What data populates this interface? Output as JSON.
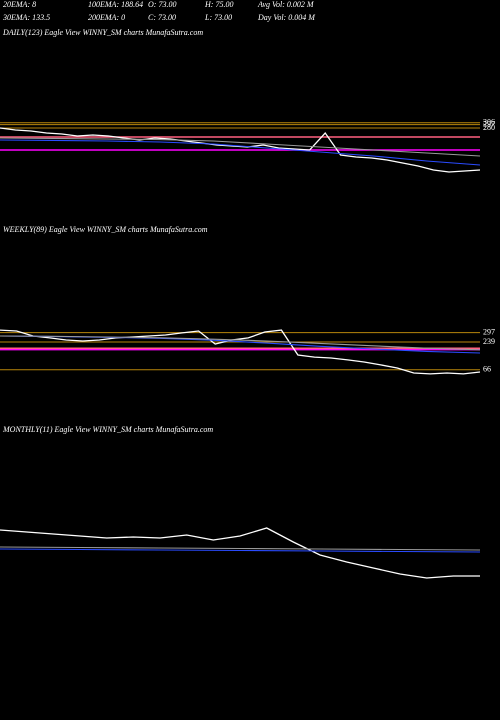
{
  "header": {
    "row1": [
      "20EMA: 8",
      "100EMA: 188.64",
      "O: 73.00",
      "H: 75.00",
      "Avg Vol: 0.002  M"
    ],
    "row2": [
      "30EMA: 133.5",
      "200EMA: 0",
      "C: 73.00",
      "L: 73.00",
      "Day Vol: 0.004  M"
    ]
  },
  "chart_data": [
    {
      "type": "line",
      "title": "DAILY(123) Eagle   View  WINNY_SM charts MunafaSutra.com",
      "ylim": [
        -80,
        420
      ],
      "series": [
        {
          "color": "#ffffff",
          "values": [
            280,
            270,
            265,
            255,
            250,
            240,
            245,
            240,
            230,
            220,
            230,
            225,
            215,
            205,
            195,
            190,
            185,
            195,
            180,
            175,
            170,
            255,
            145,
            135,
            130,
            120,
            105,
            90,
            70,
            60,
            65,
            70
          ]
        },
        {
          "color": "#2a4bff",
          "values": [
            220,
            218,
            215,
            210,
            200,
            180,
            160,
            140,
            115,
            95
          ]
        },
        {
          "color": "#9a9a9a",
          "values": [
            230,
            228,
            225,
            222,
            215,
            200,
            185,
            170,
            155,
            140
          ]
        }
      ],
      "levels": [
        {
          "value": 306,
          "color": "#b8860b"
        },
        {
          "value": 297,
          "color": "#b8860b"
        },
        {
          "value": 280,
          "color": "#b8860b"
        }
      ],
      "other_levels": [
        {
          "value": 170,
          "color": "#ff00ff"
        },
        {
          "value": 235,
          "color": "#ff6080"
        }
      ]
    },
    {
      "type": "line",
      "title": "WEEKLY(89) Eagle   View  WINNY_SM charts MunafaSutra.com",
      "ylim": [
        -60,
        500
      ],
      "series": [
        {
          "color": "#ffffff",
          "values": [
            313,
            307,
            276,
            264,
            251,
            245,
            251,
            264,
            270,
            276,
            282,
            295,
            307,
            226,
            251,
            264,
            301,
            313,
            158,
            145,
            139,
            127,
            114,
            96,
            77,
            46,
            40,
            46,
            40,
            52
          ]
        },
        {
          "color": "#2a4bff",
          "values": [
            276,
            272,
            268,
            262,
            250,
            232,
            212,
            195,
            180,
            170
          ]
        },
        {
          "color": "#9a9a9a",
          "values": [
            276,
            274,
            270,
            265,
            256,
            245,
            230,
            215,
            200,
            190
          ]
        }
      ],
      "levels": [
        {
          "value": 297,
          "color": "#b8860b"
        },
        {
          "value": 239,
          "color": "#b8860b"
        },
        {
          "value": 66,
          "color": "#b8860b"
        }
      ],
      "other_levels": [
        {
          "value": 191,
          "color": "#ff00ff"
        },
        {
          "value": 200,
          "color": "#ff6080"
        }
      ]
    },
    {
      "type": "line",
      "title": "MONTHLY(11) Eagle   View  WINNY_SM charts MunafaSutra.com",
      "ylim": [
        0,
        100
      ],
      "series": [
        {
          "color": "#ffffff",
          "values": [
            70,
            68,
            66,
            64,
            62,
            63,
            62,
            65,
            60,
            64,
            72,
            58,
            45,
            38,
            32,
            26,
            22,
            24,
            24
          ]
        },
        {
          "color": "#2a4bff",
          "values": [
            51,
            50.5,
            50,
            49.5,
            49,
            48.5,
            48
          ]
        },
        {
          "color": "#9a9a9a",
          "values": [
            53,
            52.5,
            52,
            51.5,
            51,
            50.5,
            50
          ]
        }
      ],
      "levels": [],
      "other_levels": []
    }
  ]
}
